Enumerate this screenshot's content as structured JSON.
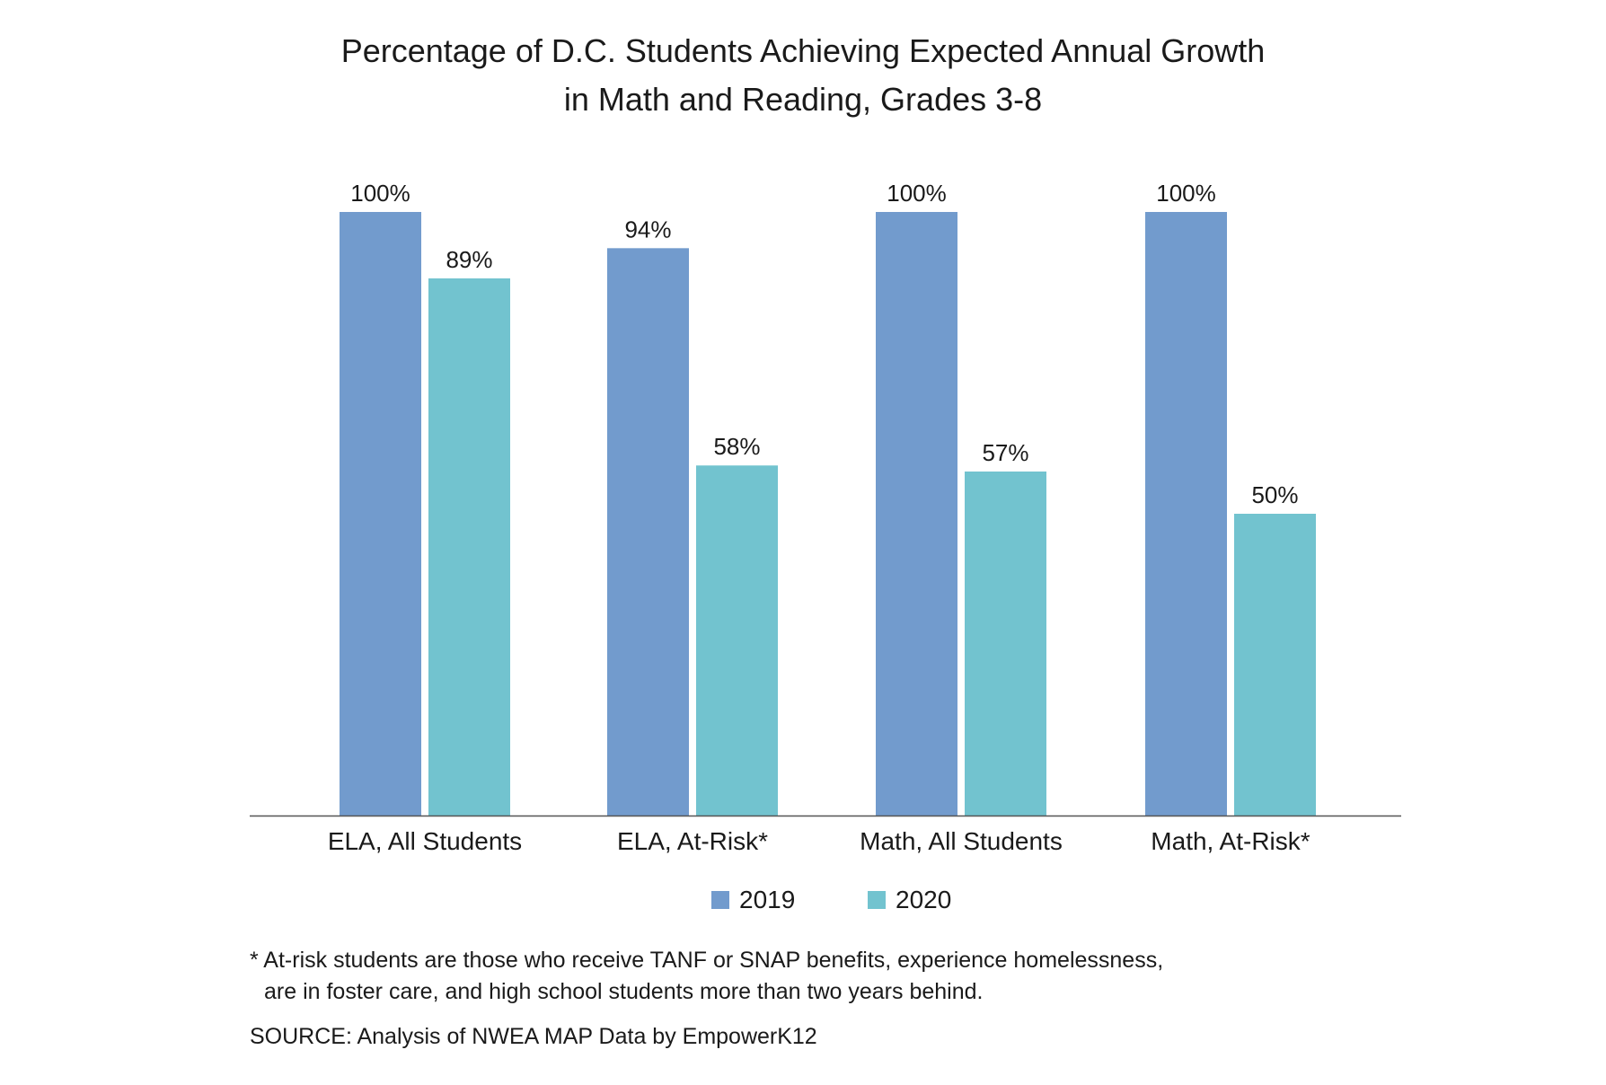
{
  "chart_data": {
    "type": "bar",
    "title": "Percentage of D.C. Students Achieving Expected Annual Growth in Math and Reading, Grades 3-8",
    "title_lines": [
      "Percentage of D.C. Students Achieving Expected Annual Growth",
      "in Math and Reading, Grades 3-8"
    ],
    "categories": [
      "ELA, All Students",
      "ELA, At-Risk*",
      "Math, All Students",
      "Math, At-Risk*"
    ],
    "series": [
      {
        "name": "2019",
        "values": [
          100,
          94,
          100,
          100
        ],
        "color": "#729bcd"
      },
      {
        "name": "2020",
        "values": [
          89,
          58,
          57,
          50
        ],
        "color": "#72c3cf"
      }
    ],
    "value_suffix": "%",
    "ylim": [
      0,
      100
    ],
    "grid": false,
    "legend_position": "bottom-center",
    "xlabel": "",
    "ylabel": ""
  },
  "footnote": {
    "line1": "* At-risk students are those who receive TANF or SNAP benefits, experience homelessness,",
    "line2": "are in foster care, and high school students more than two years behind."
  },
  "source": "SOURCE: Analysis of NWEA MAP Data by EmpowerK12",
  "colors": {
    "axis": "#555555",
    "text": "#1a1a1a"
  }
}
